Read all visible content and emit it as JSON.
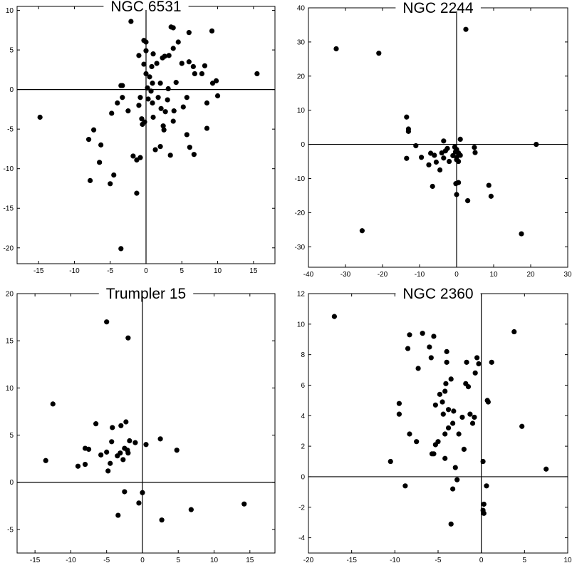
{
  "chart_data": [
    {
      "type": "scatter",
      "title": "NGC 6531",
      "xlim": [
        -18,
        18
      ],
      "ylim": [
        -22,
        10.5
      ],
      "xticks": [
        -15,
        -10,
        -5,
        0,
        5,
        10,
        15
      ],
      "yticks": [
        -20,
        -15,
        -10,
        -5,
        0,
        5,
        10
      ],
      "points": [
        [
          -14.8,
          -3.5
        ],
        [
          -8,
          -6.3
        ],
        [
          -7.8,
          -11.5
        ],
        [
          -7.3,
          -5.1
        ],
        [
          -6.3,
          -7
        ],
        [
          -6.5,
          -9.2
        ],
        [
          -5,
          -11.9
        ],
        [
          -4.5,
          -10.8
        ],
        [
          -4.8,
          -3
        ],
        [
          -4,
          -1.7
        ],
        [
          -3.5,
          0.5
        ],
        [
          -3.3,
          0.5
        ],
        [
          -3.3,
          -1
        ],
        [
          -3.5,
          -20.1
        ],
        [
          -2.5,
          -2.7
        ],
        [
          -2.1,
          8.6
        ],
        [
          -1.8,
          -8.4
        ],
        [
          -1.3,
          -8.9
        ],
        [
          -1.3,
          -13.1
        ],
        [
          -0.8,
          -8.6
        ],
        [
          -1,
          -2
        ],
        [
          -0.8,
          -1
        ],
        [
          -0.6,
          -3.7
        ],
        [
          -0.5,
          -4.4
        ],
        [
          -1,
          4.3
        ],
        [
          -0.3,
          6.2
        ],
        [
          -0.2,
          -4.1
        ],
        [
          0,
          6
        ],
        [
          0,
          4.9
        ],
        [
          0,
          2
        ],
        [
          -0.3,
          3.2
        ],
        [
          0.2,
          0.2
        ],
        [
          0.3,
          -1.2
        ],
        [
          0.5,
          1.6
        ],
        [
          0.7,
          -0.2
        ],
        [
          0.8,
          2.9
        ],
        [
          0.9,
          0.8
        ],
        [
          0.9,
          -1.7
        ],
        [
          1,
          -3.5
        ],
        [
          1,
          4.5
        ],
        [
          1.5,
          3.3
        ],
        [
          1.3,
          -7.6
        ],
        [
          1.7,
          -1
        ],
        [
          2,
          -7.2
        ],
        [
          2,
          0.8
        ],
        [
          2.1,
          -2.4
        ],
        [
          2.3,
          4
        ],
        [
          2.4,
          -4.6
        ],
        [
          2.5,
          -5.1
        ],
        [
          2.6,
          4.2
        ],
        [
          2.7,
          -2.8
        ],
        [
          3,
          -1.3
        ],
        [
          3.1,
          0.1
        ],
        [
          3.2,
          4.3
        ],
        [
          3.4,
          -8.3
        ],
        [
          3.5,
          7.9
        ],
        [
          3.8,
          7.8
        ],
        [
          3.8,
          -4
        ],
        [
          3.9,
          -2.7
        ],
        [
          3.8,
          5.2
        ],
        [
          4.2,
          0.9
        ],
        [
          4.5,
          6
        ],
        [
          5,
          3.3
        ],
        [
          5.2,
          -2.2
        ],
        [
          5.7,
          -1
        ],
        [
          5.7,
          -5.7
        ],
        [
          6.1,
          -7.3
        ],
        [
          6,
          3.5
        ],
        [
          6,
          7.2
        ],
        [
          6.6,
          2.9
        ],
        [
          6.8,
          2
        ],
        [
          6.7,
          -8.2
        ],
        [
          7.8,
          2
        ],
        [
          8.2,
          3
        ],
        [
          8.5,
          -1.7
        ],
        [
          8.5,
          -4.9
        ],
        [
          9.2,
          7.4
        ],
        [
          9.3,
          0.8
        ],
        [
          9.8,
          1.1
        ],
        [
          10,
          -0.8
        ],
        [
          15.5,
          2
        ]
      ]
    },
    {
      "type": "scatter",
      "title": "NGC 2244",
      "xlim": [
        -40,
        30
      ],
      "ylim": [
        -36,
        40
      ],
      "xticks": [
        -40,
        -30,
        -20,
        -10,
        0,
        10,
        20,
        30
      ],
      "yticks": [
        -30,
        -20,
        -10,
        0,
        10,
        20,
        30,
        40
      ],
      "points": [
        [
          -32.5,
          28
        ],
        [
          -21,
          26.7
        ],
        [
          2.5,
          33.7
        ],
        [
          -25.5,
          -25.3
        ],
        [
          -13.5,
          8
        ],
        [
          -13,
          4.5
        ],
        [
          -13,
          3.8
        ],
        [
          -13.5,
          -4.1
        ],
        [
          -11,
          -0.4
        ],
        [
          -9.5,
          -3.8
        ],
        [
          -7.5,
          -6
        ],
        [
          -7,
          -2.6
        ],
        [
          -6,
          -3.2
        ],
        [
          -6.5,
          -12.3
        ],
        [
          -5.5,
          -5.2
        ],
        [
          -4.5,
          -7.5
        ],
        [
          -4,
          -2.5
        ],
        [
          -3.5,
          -4
        ],
        [
          -3,
          -1.9
        ],
        [
          -3.5,
          1
        ],
        [
          -2.5,
          -1.2
        ],
        [
          -2,
          -5
        ],
        [
          -1,
          -3.3
        ],
        [
          -0.5,
          -0.8
        ],
        [
          0,
          -1.5
        ],
        [
          -0.3,
          -2.2
        ],
        [
          0,
          -3.8
        ],
        [
          0,
          -4.5
        ],
        [
          0.5,
          -5
        ],
        [
          0.5,
          -2.5
        ],
        [
          0.5,
          -11.2
        ],
        [
          -0.2,
          -11.5
        ],
        [
          0,
          -14.7
        ],
        [
          1,
          1.5
        ],
        [
          1,
          -3.2
        ],
        [
          3,
          -16.5
        ],
        [
          4.8,
          -0.9
        ],
        [
          5,
          -2.4
        ],
        [
          8.7,
          -12
        ],
        [
          9.3,
          -15.2
        ],
        [
          17.5,
          -26.2
        ],
        [
          21.5,
          0
        ]
      ]
    },
    {
      "type": "scatter",
      "title": "Trumpler 15",
      "xlim": [
        -17.5,
        18.5
      ],
      "ylim": [
        -7.5,
        20
      ],
      "xticks": [
        -15,
        -10,
        -5,
        0,
        5,
        10,
        15
      ],
      "yticks": [
        -5,
        0,
        5,
        10,
        15,
        20
      ],
      "points": [
        [
          -13.5,
          2.3
        ],
        [
          -12.5,
          8.3
        ],
        [
          -9,
          1.7
        ],
        [
          -8,
          1.9
        ],
        [
          -8,
          3.6
        ],
        [
          -7.5,
          3.5
        ],
        [
          -6.5,
          6.2
        ],
        [
          -5.8,
          2.9
        ],
        [
          -5,
          3.2
        ],
        [
          -4.8,
          1.2
        ],
        [
          -4.5,
          2
        ],
        [
          -4.3,
          4.3
        ],
        [
          -4.2,
          5.8
        ],
        [
          -3.5,
          2.8
        ],
        [
          -3.4,
          -3.5
        ],
        [
          -3.1,
          3.1
        ],
        [
          -3,
          6
        ],
        [
          -2.7,
          2.4
        ],
        [
          -2.5,
          3.6
        ],
        [
          -2.5,
          -1
        ],
        [
          -2.3,
          6.4
        ],
        [
          -2.1,
          3.4
        ],
        [
          -2.0,
          15.3
        ],
        [
          -2.0,
          3.1
        ],
        [
          -1.8,
          4.4
        ],
        [
          -1,
          4.2
        ],
        [
          -0.5,
          -2.2
        ],
        [
          0,
          -1.1
        ],
        [
          0.5,
          4
        ],
        [
          2.5,
          4.6
        ],
        [
          2.7,
          -4.0
        ],
        [
          4.8,
          3.4
        ],
        [
          6.8,
          -2.9
        ],
        [
          14.2,
          -2.3
        ],
        [
          -5,
          17
        ]
      ]
    },
    {
      "type": "scatter",
      "title": "NGC 2360",
      "xlim": [
        -20,
        10
      ],
      "ylim": [
        -5,
        12
      ],
      "xticks": [
        -20,
        -15,
        -10,
        -5,
        0,
        5,
        10
      ],
      "yticks": [
        -4,
        -2,
        0,
        2,
        4,
        6,
        8,
        10,
        12
      ],
      "points": [
        [
          -17,
          10.5
        ],
        [
          -10.5,
          1
        ],
        [
          -9.5,
          4.8
        ],
        [
          -9.5,
          4.1
        ],
        [
          -8.5,
          8.4
        ],
        [
          -8.3,
          9.3
        ],
        [
          -8.3,
          2.8
        ],
        [
          -7.5,
          2.3
        ],
        [
          -7.3,
          7.1
        ],
        [
          -6.8,
          9.4
        ],
        [
          -6,
          8.5
        ],
        [
          -5.8,
          7.8
        ],
        [
          -5.5,
          9.2
        ],
        [
          -5.5,
          1.5
        ],
        [
          -5.3,
          2.1
        ],
        [
          -5.3,
          4.7
        ],
        [
          -5,
          2.3
        ],
        [
          -4.8,
          5.4
        ],
        [
          -4.5,
          4.9
        ],
        [
          -4.4,
          4.1
        ],
        [
          -4.2,
          5.6
        ],
        [
          -4.2,
          2.8
        ],
        [
          -4.1,
          6.1
        ],
        [
          -4.0,
          7.5
        ],
        [
          -4.0,
          8.2
        ],
        [
          -3.8,
          3.2
        ],
        [
          -3.8,
          4.4
        ],
        [
          -3.5,
          6.4
        ],
        [
          -3.2,
          4.3
        ],
        [
          -3.3,
          3.5
        ],
        [
          -3.3,
          -0.8
        ],
        [
          -3.5,
          -3.1
        ],
        [
          -3,
          0.6
        ],
        [
          -2.8,
          -0.2
        ],
        [
          -2.6,
          2.8
        ],
        [
          -2.2,
          3.9
        ],
        [
          -2,
          1.8
        ],
        [
          -1.8,
          6.1
        ],
        [
          -1.7,
          7.5
        ],
        [
          -1.5,
          5.9
        ],
        [
          -1.3,
          4.1
        ],
        [
          -1.0,
          3.5
        ],
        [
          -0.8,
          3.9
        ],
        [
          -0.7,
          6.8
        ],
        [
          -0.5,
          7.8
        ],
        [
          -0.3,
          7.4
        ],
        [
          0.2,
          1
        ],
        [
          0.3,
          -1.8
        ],
        [
          0.2,
          -2.2
        ],
        [
          0.3,
          -2.4
        ],
        [
          0.7,
          5
        ],
        [
          0.8,
          4.9
        ],
        [
          1.2,
          7.5
        ],
        [
          3.8,
          9.5
        ],
        [
          4.7,
          3.3
        ],
        [
          7.5,
          0.5
        ],
        [
          -8.8,
          -0.6
        ],
        [
          0.6,
          -0.6
        ],
        [
          -4.2,
          1.2
        ],
        [
          -5.7,
          1.5
        ]
      ]
    }
  ]
}
